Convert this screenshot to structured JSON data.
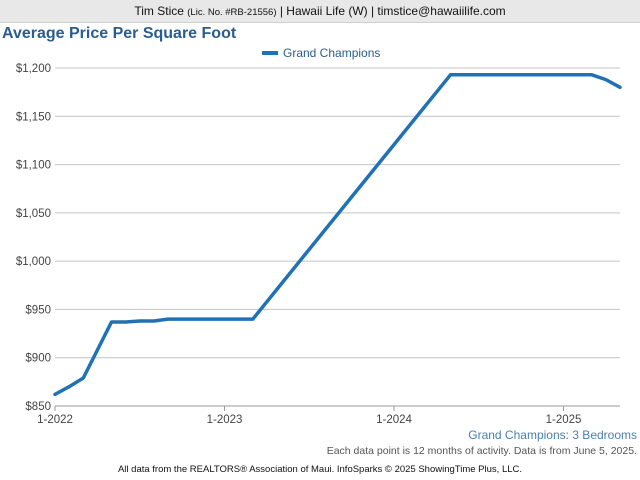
{
  "header": {
    "agent_name": "Tim Stice",
    "license": "(Lic. No. #RB-21556)",
    "company_and_email": "| Hawaii Life (W) | timstice@hawaiilife.com"
  },
  "chart_data": {
    "type": "line",
    "title": "Average Price Per Square Foot",
    "subtitle": "Grand Champions: 3 Bedrooms",
    "xlabel": "",
    "ylabel": "",
    "x_tick_labels": [
      "1-2022",
      "1-2023",
      "1-2024",
      "1-2025"
    ],
    "y_tick_labels": [
      "$850",
      "$900",
      "$950",
      "$1,000",
      "$1,050",
      "$1,100",
      "$1,150",
      "$1,200"
    ],
    "y_ticks": [
      850,
      900,
      950,
      1000,
      1050,
      1100,
      1150,
      1200
    ],
    "ylim": [
      850,
      1200
    ],
    "xlim": [
      "2022-01",
      "2025-05"
    ],
    "grid": true,
    "legend_position": "top-center",
    "color": "#2171b5",
    "series": [
      {
        "name": "Grand Champions",
        "x": [
          "2022-01",
          "2022-02",
          "2022-03",
          "2022-04",
          "2022-05",
          "2022-06",
          "2022-07",
          "2022-08",
          "2022-09",
          "2022-10",
          "2022-11",
          "2022-12",
          "2023-01",
          "2023-02",
          "2023-03",
          "2024-05",
          "2024-06",
          "2024-07",
          "2024-08",
          "2024-09",
          "2024-10",
          "2024-11",
          "2024-12",
          "2025-01",
          "2025-02",
          "2025-03",
          "2025-04",
          "2025-05"
        ],
        "values": [
          862,
          870,
          879,
          908,
          937,
          937,
          938,
          938,
          940,
          940,
          940,
          940,
          940,
          940,
          940,
          1193,
          1193,
          1193,
          1193,
          1193,
          1193,
          1193,
          1193,
          1193,
          1193,
          1193,
          1188,
          1180
        ]
      }
    ]
  },
  "note": "Each data point is 12 months of activity. Data is from June 5, 2025.",
  "footer": "All data from the REALTORS® Association of Maui. InfoSparks © 2025 ShowingTime Plus, LLC."
}
